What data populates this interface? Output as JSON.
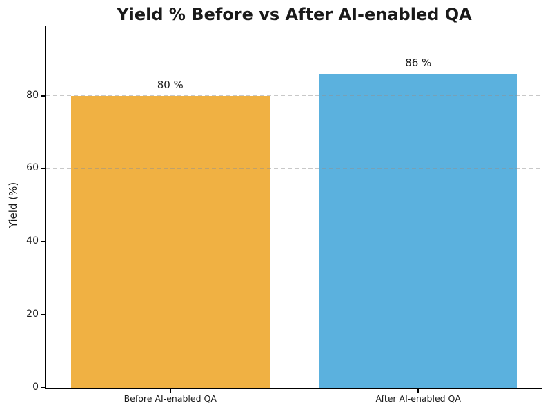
{
  "figure": {
    "background": "#ffffff",
    "title_color": "#1a1a1a"
  },
  "chart_data": {
    "type": "bar",
    "title": "Yield % Before vs After AI-enabled QA",
    "categories": [
      "Before AI-enabled QA",
      "After AI-enabled QA"
    ],
    "values": [
      80,
      86
    ],
    "value_labels": [
      "80 %",
      "86 %"
    ],
    "bar_colors": [
      "#f0b143",
      "#5bb1de"
    ],
    "xlabel": "",
    "ylabel": "Yield (%)",
    "ylim": [
      0,
      99
    ],
    "yticks": [
      0,
      20,
      40,
      60,
      80
    ],
    "grid": "horizontal-dashed-above-bars",
    "legend": "none",
    "bar_width_fraction": 0.8
  }
}
